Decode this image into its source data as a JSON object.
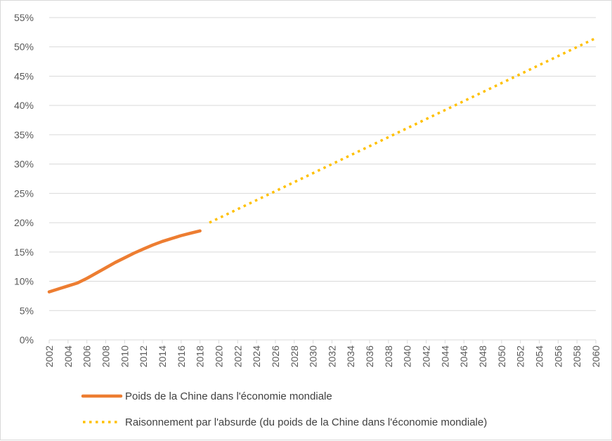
{
  "chart_data": {
    "type": "line",
    "title": "",
    "xlabel": "",
    "ylabel": "",
    "x_ticks": [
      "2002",
      "2004",
      "2006",
      "2008",
      "2010",
      "2012",
      "2014",
      "2016",
      "2018",
      "2020",
      "2022",
      "2024",
      "2026",
      "2028",
      "2030",
      "2032",
      "2034",
      "2036",
      "2038",
      "2040",
      "2042",
      "2044",
      "2046",
      "2048",
      "2050",
      "2052",
      "2054",
      "2056",
      "2058",
      "2060"
    ],
    "y_ticks": [
      "0%",
      "5%",
      "10%",
      "15%",
      "20%",
      "25%",
      "30%",
      "35%",
      "40%",
      "45%",
      "50%",
      "55%"
    ],
    "xlim": [
      2002,
      2060
    ],
    "ylim": [
      0,
      55
    ],
    "grid": "horizontal",
    "legend": "bottom",
    "series": [
      {
        "name": "Poids de la Chine dans l'économie mondiale",
        "color": "#ED7D31",
        "style": "solid",
        "x": [
          2002,
          2003,
          2004,
          2005,
          2006,
          2007,
          2008,
          2009,
          2010,
          2011,
          2012,
          2013,
          2014,
          2015,
          2016,
          2017,
          2018
        ],
        "values": [
          8.2,
          8.7,
          9.2,
          9.7,
          10.5,
          11.4,
          12.3,
          13.2,
          14.0,
          14.8,
          15.5,
          16.2,
          16.8,
          17.3,
          17.8,
          18.2,
          18.6
        ]
      },
      {
        "name": "Raisonnement par l'absurde (du poids de la Chine dans l'économie mondiale)",
        "color": "#FFC000",
        "style": "dotted",
        "x": [
          2019,
          2060
        ],
        "values": [
          20.0,
          51.5
        ]
      }
    ]
  }
}
